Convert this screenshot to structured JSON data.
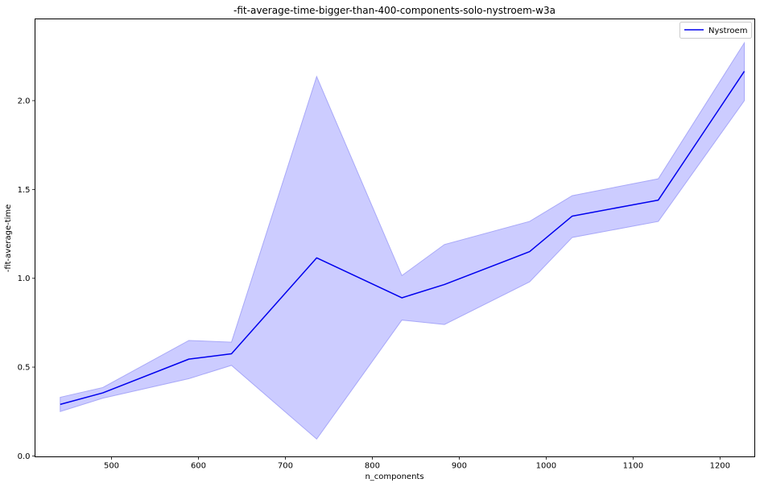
{
  "chart_data": {
    "type": "line",
    "title": "-fit-average-time-bigger-than-400-components-solo-nystroem-w3a",
    "xlabel": "n_components",
    "ylabel": "-fit-average-time",
    "xlim": [
      412,
      1240
    ],
    "ylim": [
      -0.005,
      2.46
    ],
    "xticks": [
      500,
      600,
      700,
      800,
      900,
      1000,
      1100,
      1200
    ],
    "yticks": [
      0.0,
      0.5,
      1.0,
      1.5,
      2.0
    ],
    "ytick_labels": [
      "0.0",
      "0.5",
      "1.0",
      "1.5",
      "2.0"
    ],
    "grid": false,
    "legend_position": "top-right",
    "series": [
      {
        "name": "Nystroem",
        "color": "#0000ee",
        "band_color": "#ccccff",
        "band_edge_color": "#a8a8f8",
        "x": [
          441,
          490,
          589,
          638,
          736,
          834,
          883,
          981,
          1030,
          1129,
          1228
        ],
        "y": [
          0.29,
          0.355,
          0.545,
          0.575,
          1.115,
          0.89,
          0.965,
          1.15,
          1.35,
          1.44,
          2.165
        ],
        "y_lower": [
          0.25,
          0.325,
          0.435,
          0.51,
          0.095,
          0.765,
          0.74,
          0.98,
          1.23,
          1.32,
          2.0
        ],
        "y_upper": [
          0.33,
          0.385,
          0.65,
          0.64,
          2.135,
          1.015,
          1.19,
          1.32,
          1.465,
          1.56,
          2.325
        ]
      }
    ]
  }
}
